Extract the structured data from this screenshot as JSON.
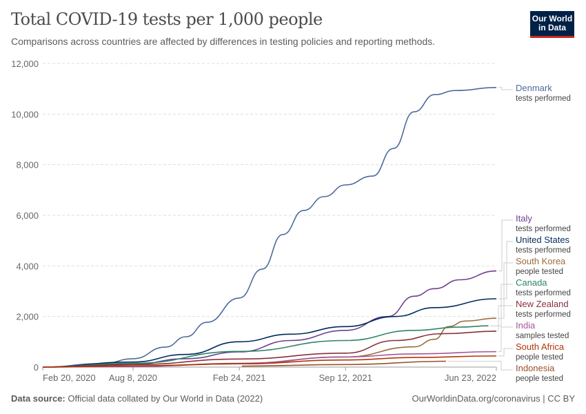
{
  "header": {
    "title": "Total COVID-19 tests per 1,000 people",
    "subtitle": "Comparisons across countries are affected by differences in testing policies and reporting methods.",
    "logo": "Our World in Data"
  },
  "footer": {
    "source_label": "Data source:",
    "source_text": "Official data collated by Our World in Data (2022)",
    "link": "OurWorldinData.org/coronavirus | CC BY"
  },
  "chart_data": {
    "type": "line",
    "title": "Total COVID-19 tests per 1,000 people",
    "ylim": [
      0,
      12000
    ],
    "xlim": [
      "2020-02-20",
      "2022-06-23"
    ],
    "yticks": [
      0,
      2000,
      4000,
      6000,
      8000,
      10000,
      12000
    ],
    "ytick_labels": [
      "0",
      "2,000",
      "4,000",
      "6,000",
      "8,000",
      "10,000",
      "12,000"
    ],
    "xticks": [
      "2020-02-20",
      "2020-08-08",
      "2021-02-24",
      "2021-09-12",
      "2022-06-23"
    ],
    "xtick_labels": [
      "Feb 20, 2020",
      "Aug 8, 2020",
      "Feb 24, 2021",
      "Sep 12, 2021",
      "Jun 23, 2022"
    ],
    "grid": "horizontal dashed",
    "legend": "right (line-end labels)",
    "series": [
      {
        "name": "Denmark",
        "sublabel": "tests performed",
        "color": "#4C6A9C",
        "points": [
          [
            "2020-02-20",
            0
          ],
          [
            "2020-06-13",
            140
          ],
          [
            "2020-08-08",
            330
          ],
          [
            "2020-10-08",
            790
          ],
          [
            "2020-11-16",
            1200
          ],
          [
            "2020-12-25",
            1770
          ],
          [
            "2021-02-24",
            2730
          ],
          [
            "2021-04-08",
            3870
          ],
          [
            "2021-05-17",
            5240
          ],
          [
            "2021-06-25",
            6190
          ],
          [
            "2021-08-03",
            6740
          ],
          [
            "2021-09-12",
            7200
          ],
          [
            "2021-11-02",
            7550
          ],
          [
            "2021-12-11",
            8640
          ],
          [
            "2022-01-19",
            10090
          ],
          [
            "2022-02-27",
            10770
          ],
          [
            "2022-04-07",
            10930
          ],
          [
            "2022-06-23",
            11050
          ]
        ]
      },
      {
        "name": "Italy",
        "sublabel": "tests performed",
        "color": "#6D3E91",
        "points": [
          [
            "2020-02-20",
            0
          ],
          [
            "2020-08-08",
            110
          ],
          [
            "2020-11-15",
            330
          ],
          [
            "2021-02-24",
            600
          ],
          [
            "2021-06-01",
            1050
          ],
          [
            "2021-09-12",
            1450
          ],
          [
            "2021-12-01",
            2000
          ],
          [
            "2022-01-19",
            2800
          ],
          [
            "2022-02-27",
            3100
          ],
          [
            "2022-04-15",
            3450
          ],
          [
            "2022-06-23",
            3800
          ]
        ]
      },
      {
        "name": "United States",
        "sublabel": "tests performed",
        "color": "#00295B",
        "points": [
          [
            "2020-02-20",
            0
          ],
          [
            "2020-08-08",
            200
          ],
          [
            "2020-11-15",
            500
          ],
          [
            "2021-02-24",
            1000
          ],
          [
            "2021-06-01",
            1300
          ],
          [
            "2021-09-12",
            1600
          ],
          [
            "2021-12-15",
            2000
          ],
          [
            "2022-02-27",
            2350
          ],
          [
            "2022-06-23",
            2700
          ]
        ]
      },
      {
        "name": "South Korea",
        "sublabel": "people tested",
        "color": "#996D39",
        "points": [
          [
            "2020-02-20",
            0
          ],
          [
            "2020-08-08",
            30
          ],
          [
            "2021-02-24",
            130
          ],
          [
            "2021-09-12",
            400
          ],
          [
            "2022-01-19",
            800
          ],
          [
            "2022-02-27",
            1100
          ],
          [
            "2022-03-25",
            1600
          ],
          [
            "2022-04-25",
            1820
          ],
          [
            "2022-06-23",
            1930
          ]
        ]
      },
      {
        "name": "Canada",
        "sublabel": "tests performed",
        "color": "#2C8465",
        "points": [
          [
            "2020-02-20",
            0
          ],
          [
            "2020-08-08",
            150
          ],
          [
            "2021-02-24",
            620
          ],
          [
            "2021-09-12",
            1050
          ],
          [
            "2022-01-19",
            1450
          ],
          [
            "2022-04-15",
            1580
          ],
          [
            "2022-06-08",
            1630
          ]
        ]
      },
      {
        "name": "New Zealand",
        "sublabel": "tests performed",
        "color": "#883039",
        "points": [
          [
            "2020-02-20",
            0
          ],
          [
            "2020-08-08",
            100
          ],
          [
            "2021-02-24",
            320
          ],
          [
            "2021-09-12",
            550
          ],
          [
            "2021-12-15",
            1050
          ],
          [
            "2022-03-15",
            1320
          ],
          [
            "2022-06-23",
            1420
          ]
        ]
      },
      {
        "name": "India",
        "sublabel": "samples tested",
        "color": "#A2559C",
        "points": [
          [
            "2020-02-20",
            0
          ],
          [
            "2020-08-08",
            20
          ],
          [
            "2021-02-24",
            150
          ],
          [
            "2021-09-12",
            400
          ],
          [
            "2022-01-19",
            520
          ],
          [
            "2022-06-23",
            610
          ]
        ]
      },
      {
        "name": "South Africa",
        "sublabel": "people tested",
        "color": "#B13507",
        "points": [
          [
            "2020-02-20",
            0
          ],
          [
            "2020-08-08",
            50
          ],
          [
            "2021-02-24",
            130
          ],
          [
            "2021-09-12",
            280
          ],
          [
            "2022-01-19",
            380
          ],
          [
            "2022-06-23",
            440
          ]
        ]
      },
      {
        "name": "Indonesia",
        "sublabel": "people tested",
        "color": "#9A5129",
        "points": [
          [
            "2021-03-01",
            40
          ],
          [
            "2021-09-12",
            100
          ],
          [
            "2022-03-20",
            230
          ]
        ]
      }
    ]
  }
}
